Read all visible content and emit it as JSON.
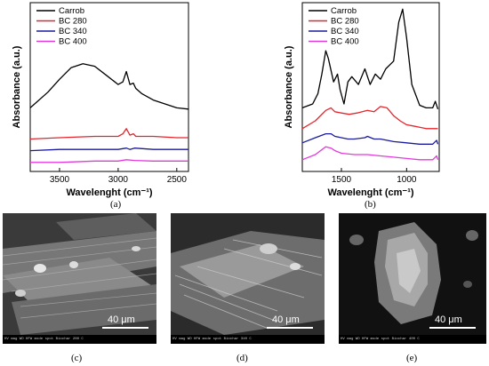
{
  "chart_data": [
    {
      "type": "line",
      "panel": "(a)",
      "xlabel": "Wavelenght (cm⁻¹)",
      "ylabel": "Absorbance (a.u.)",
      "xlim": [
        3750,
        2400
      ],
      "x_reversed": true,
      "xticks": [
        3500,
        3000,
        2500
      ],
      "legend_position": "top-left",
      "series": [
        {
          "name": "Carrob",
          "color": "#000000",
          "x": [
            3750,
            3600,
            3500,
            3400,
            3300,
            3200,
            3100,
            3000,
            2960,
            2930,
            2900,
            2870,
            2850,
            2800,
            2700,
            2600,
            2500,
            2400
          ],
          "y": [
            0.44,
            0.56,
            0.66,
            0.75,
            0.78,
            0.76,
            0.69,
            0.62,
            0.64,
            0.72,
            0.62,
            0.63,
            0.59,
            0.55,
            0.5,
            0.47,
            0.44,
            0.43
          ]
        },
        {
          "name": "BC 280",
          "color": "#e3262d",
          "x": [
            3750,
            3500,
            3200,
            3000,
            2960,
            2930,
            2900,
            2870,
            2850,
            2700,
            2500,
            2400
          ],
          "y": [
            0.2,
            0.21,
            0.22,
            0.22,
            0.24,
            0.28,
            0.23,
            0.24,
            0.22,
            0.22,
            0.21,
            0.21
          ]
        },
        {
          "name": "BC 340",
          "color": "#1a1a9e",
          "x": [
            3750,
            3500,
            3200,
            3000,
            2930,
            2900,
            2860,
            2700,
            2500,
            2400
          ],
          "y": [
            0.11,
            0.12,
            0.12,
            0.12,
            0.13,
            0.12,
            0.13,
            0.12,
            0.12,
            0.12
          ]
        },
        {
          "name": "BC 400",
          "color": "#e23bdc",
          "x": [
            3750,
            3500,
            3200,
            3000,
            2930,
            2860,
            2700,
            2500,
            2400
          ],
          "y": [
            0.02,
            0.02,
            0.03,
            0.03,
            0.04,
            0.035,
            0.03,
            0.03,
            0.03
          ]
        }
      ]
    },
    {
      "type": "line",
      "panel": "(b)",
      "xlabel": "Wavelenght (cm⁻¹)",
      "ylabel": "Absorbance (a.u.)",
      "xlim": [
        1800,
        750
      ],
      "x_reversed": true,
      "xticks": [
        1500,
        1000
      ],
      "legend_position": "top-left",
      "series": [
        {
          "name": "Carrob",
          "color": "#000000",
          "x": [
            1800,
            1720,
            1680,
            1650,
            1620,
            1600,
            1560,
            1530,
            1510,
            1480,
            1450,
            1420,
            1370,
            1320,
            1280,
            1240,
            1200,
            1160,
            1100,
            1060,
            1030,
            1000,
            960,
            900,
            850,
            800,
            780,
            760
          ],
          "y": [
            0.44,
            0.47,
            0.55,
            0.7,
            0.88,
            0.82,
            0.64,
            0.7,
            0.58,
            0.47,
            0.64,
            0.68,
            0.62,
            0.74,
            0.62,
            0.7,
            0.66,
            0.74,
            0.8,
            1.1,
            1.2,
            0.98,
            0.62,
            0.46,
            0.44,
            0.44,
            0.49,
            0.43
          ]
        },
        {
          "name": "BC 280",
          "color": "#e3262d",
          "x": [
            1800,
            1700,
            1620,
            1580,
            1550,
            1500,
            1440,
            1380,
            1300,
            1250,
            1200,
            1150,
            1100,
            1050,
            1000,
            950,
            900,
            850,
            800,
            760
          ],
          "y": [
            0.28,
            0.34,
            0.42,
            0.44,
            0.41,
            0.4,
            0.39,
            0.4,
            0.42,
            0.41,
            0.45,
            0.44,
            0.38,
            0.34,
            0.31,
            0.3,
            0.29,
            0.28,
            0.28,
            0.28
          ]
        },
        {
          "name": "BC 340",
          "color": "#1a1a9e",
          "x": [
            1800,
            1700,
            1620,
            1580,
            1550,
            1500,
            1450,
            1400,
            1320,
            1300,
            1250,
            1200,
            1100,
            1000,
            900,
            850,
            800,
            770,
            760
          ],
          "y": [
            0.17,
            0.21,
            0.24,
            0.24,
            0.22,
            0.21,
            0.2,
            0.2,
            0.21,
            0.22,
            0.2,
            0.2,
            0.18,
            0.17,
            0.16,
            0.16,
            0.16,
            0.19,
            0.16
          ]
        },
        {
          "name": "BC 400",
          "color": "#e23bdc",
          "x": [
            1800,
            1700,
            1620,
            1580,
            1550,
            1500,
            1400,
            1300,
            1200,
            1100,
            1000,
            900,
            850,
            800,
            770,
            760
          ],
          "y": [
            0.04,
            0.08,
            0.14,
            0.13,
            0.11,
            0.09,
            0.08,
            0.08,
            0.07,
            0.06,
            0.05,
            0.04,
            0.04,
            0.04,
            0.07,
            0.04
          ]
        }
      ]
    }
  ],
  "captions": {
    "a": "(a)",
    "b": "(b)",
    "c": "(c)",
    "d": "(d)",
    "e": "(e)"
  },
  "sem_images": [
    {
      "id": "c",
      "scale_label": "40 μm",
      "info": "HV  mag  WD  HFW  mode  spot   Biochar 280 C"
    },
    {
      "id": "d",
      "scale_label": "40 μm",
      "info": "HV  mag  WD  HFW  mode  spot   Biochar 340 C"
    },
    {
      "id": "e",
      "scale_label": "40 μm",
      "info": "HV  mag  WD  HFW  mode  spot   Biochar 400 C"
    }
  ]
}
